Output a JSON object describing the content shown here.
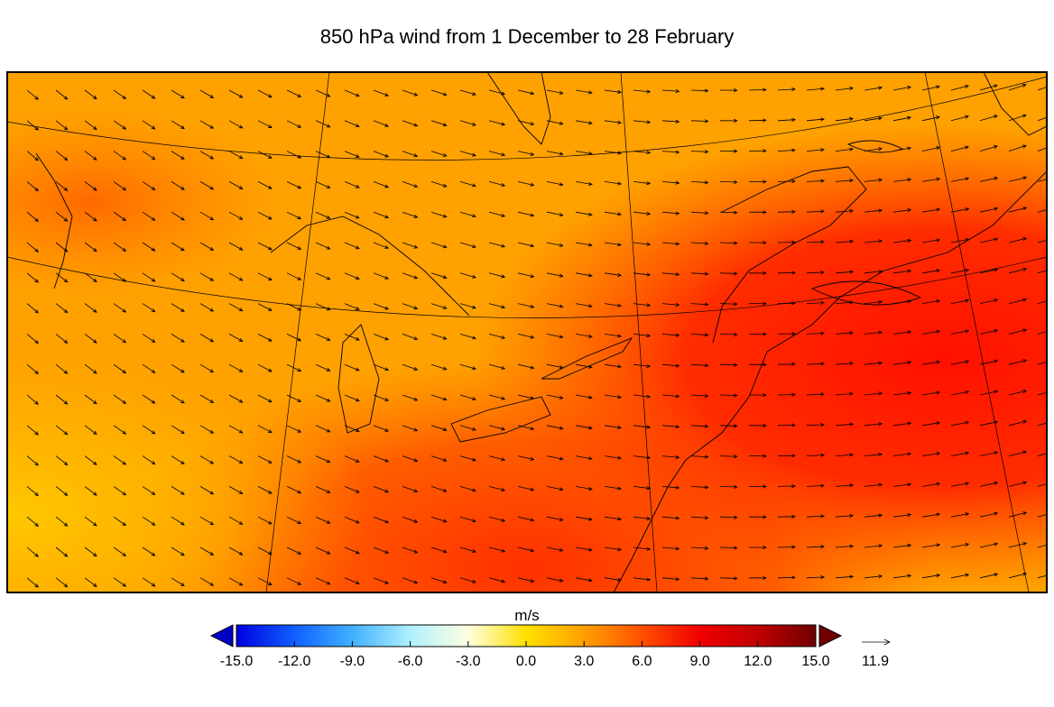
{
  "map": {
    "title": "850 hPa wind  from 1 December to 28 February"
  },
  "colorbar": {
    "label": "m/s",
    "lim": [
      -15,
      15
    ],
    "ticks": [
      {
        "value": -15,
        "label": "-15.0"
      },
      {
        "value": -12,
        "label": "-12.0"
      },
      {
        "value": -9,
        "label": "-9.0"
      },
      {
        "value": -6,
        "label": "-6.0"
      },
      {
        "value": -3,
        "label": "-3.0"
      },
      {
        "value": 0,
        "label": "0.0"
      },
      {
        "value": 3,
        "label": "3.0"
      },
      {
        "value": 6,
        "label": "6.0"
      },
      {
        "value": 9,
        "label": "9.0"
      },
      {
        "value": 12,
        "label": "12.0"
      },
      {
        "value": 15,
        "label": "15.0"
      }
    ],
    "colors": [
      "#0000e0",
      "#1060ff",
      "#40b0ff",
      "#b0f0ff",
      "#ffffe0",
      "#ffe000",
      "#ffa000",
      "#ff5000",
      "#f00000",
      "#c00000",
      "#700000"
    ]
  },
  "reference_vector": {
    "value": 11.9
  }
}
